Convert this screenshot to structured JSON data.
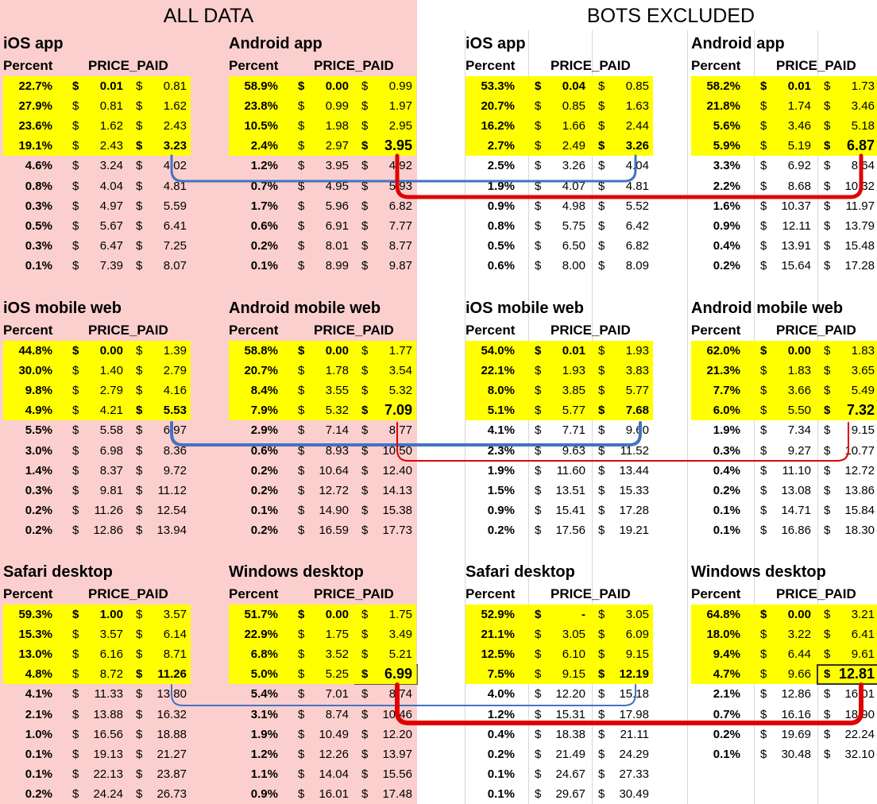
{
  "headers": {
    "left": "ALL DATA",
    "right": "BOTS EXCLUDED"
  },
  "column_labels": {
    "percent": "Percent",
    "price": "PRICE_PAID",
    "currency": "$"
  },
  "colors": {
    "all_data_bg": "#fbcfce",
    "top_rows_highlight": "#ffff00",
    "selected_cell": "#c6c000",
    "arrow_all": "#4472c4",
    "arrow_excluded": "#e00000"
  },
  "blocks": [
    {
      "title": "iOS app",
      "rows": [
        [
          "22.7%",
          "0.01",
          "0.81"
        ],
        [
          "27.9%",
          "0.81",
          "1.62"
        ],
        [
          "23.6%",
          "1.62",
          "2.43"
        ],
        [
          "19.1%",
          "2.43",
          "3.23"
        ],
        [
          "4.6%",
          "3.24",
          "4.02"
        ],
        [
          "0.8%",
          "4.04",
          "4.81"
        ],
        [
          "0.3%",
          "4.97",
          "5.59"
        ],
        [
          "0.5%",
          "5.67",
          "6.41"
        ],
        [
          "0.3%",
          "6.47",
          "7.25"
        ],
        [
          "0.1%",
          "7.39",
          "8.07"
        ]
      ]
    },
    {
      "title": "Android app",
      "rows": [
        [
          "58.9%",
          "0.00",
          "0.99"
        ],
        [
          "23.8%",
          "0.99",
          "1.97"
        ],
        [
          "10.5%",
          "1.98",
          "2.95"
        ],
        [
          "2.4%",
          "2.97",
          "3.95"
        ],
        [
          "1.2%",
          "3.95",
          "4.92"
        ],
        [
          "0.7%",
          "4.95",
          "5.93"
        ],
        [
          "1.7%",
          "5.96",
          "6.82"
        ],
        [
          "0.6%",
          "6.91",
          "7.77"
        ],
        [
          "0.2%",
          "8.01",
          "8.77"
        ],
        [
          "0.1%",
          "8.99",
          "9.87"
        ]
      ]
    },
    {
      "title": "iOS app",
      "rows": [
        [
          "53.3%",
          "0.04",
          "0.85"
        ],
        [
          "20.7%",
          "0.85",
          "1.63"
        ],
        [
          "16.2%",
          "1.66",
          "2.44"
        ],
        [
          "2.7%",
          "2.49",
          "3.26"
        ],
        [
          "2.5%",
          "3.26",
          "4.04"
        ],
        [
          "1.9%",
          "4.07",
          "4.81"
        ],
        [
          "0.9%",
          "4.98",
          "5.52"
        ],
        [
          "0.8%",
          "5.75",
          "6.42"
        ],
        [
          "0.5%",
          "6.50",
          "6.82"
        ],
        [
          "0.6%",
          "8.00",
          "8.09"
        ]
      ]
    },
    {
      "title": "Android app",
      "rows": [
        [
          "58.2%",
          "0.01",
          "1.73"
        ],
        [
          "21.8%",
          "1.74",
          "3.46"
        ],
        [
          "5.6%",
          "3.46",
          "5.18"
        ],
        [
          "5.9%",
          "5.19",
          "6.87"
        ],
        [
          "3.3%",
          "6.92",
          "8.64"
        ],
        [
          "2.2%",
          "8.68",
          "10.32"
        ],
        [
          "1.6%",
          "10.37",
          "11.97"
        ],
        [
          "0.9%",
          "12.11",
          "13.79"
        ],
        [
          "0.4%",
          "13.91",
          "15.48"
        ],
        [
          "0.2%",
          "15.64",
          "17.28"
        ]
      ]
    },
    {
      "title": "iOS mobile web",
      "rows": [
        [
          "44.8%",
          "0.00",
          "1.39"
        ],
        [
          "30.0%",
          "1.40",
          "2.79"
        ],
        [
          "9.8%",
          "2.79",
          "4.16"
        ],
        [
          "4.9%",
          "4.21",
          "5.53"
        ],
        [
          "5.5%",
          "5.58",
          "6.97"
        ],
        [
          "3.0%",
          "6.98",
          "8.36"
        ],
        [
          "1.4%",
          "8.37",
          "9.72"
        ],
        [
          "0.3%",
          "9.81",
          "11.12"
        ],
        [
          "0.2%",
          "11.26",
          "12.54"
        ],
        [
          "0.2%",
          "12.86",
          "13.94"
        ]
      ]
    },
    {
      "title": "Android mobile web",
      "rows": [
        [
          "58.8%",
          "0.00",
          "1.77"
        ],
        [
          "20.7%",
          "1.78",
          "3.54"
        ],
        [
          "8.4%",
          "3.55",
          "5.32"
        ],
        [
          "7.9%",
          "5.32",
          "7.09"
        ],
        [
          "2.9%",
          "7.14",
          "8.77"
        ],
        [
          "0.6%",
          "8.93",
          "10.50"
        ],
        [
          "0.2%",
          "10.64",
          "12.40"
        ],
        [
          "0.2%",
          "12.72",
          "14.13"
        ],
        [
          "0.1%",
          "14.90",
          "15.38"
        ],
        [
          "0.2%",
          "16.59",
          "17.73"
        ]
      ]
    },
    {
      "title": "iOS mobile web",
      "rows": [
        [
          "54.0%",
          "0.01",
          "1.93"
        ],
        [
          "22.1%",
          "1.93",
          "3.83"
        ],
        [
          "8.0%",
          "3.85",
          "5.77"
        ],
        [
          "5.1%",
          "5.77",
          "7.68"
        ],
        [
          "4.1%",
          "7.71",
          "9.60"
        ],
        [
          "2.3%",
          "9.63",
          "11.52"
        ],
        [
          "1.9%",
          "11.60",
          "13.44"
        ],
        [
          "1.5%",
          "13.51",
          "15.33"
        ],
        [
          "0.9%",
          "15.41",
          "17.28"
        ],
        [
          "0.2%",
          "17.56",
          "19.21"
        ]
      ]
    },
    {
      "title": "Android mobile web",
      "rows": [
        [
          "62.0%",
          "0.00",
          "1.83"
        ],
        [
          "21.3%",
          "1.83",
          "3.65"
        ],
        [
          "7.7%",
          "3.66",
          "5.49"
        ],
        [
          "6.0%",
          "5.50",
          "7.32"
        ],
        [
          "1.9%",
          "7.34",
          "9.15"
        ],
        [
          "0.3%",
          "9.27",
          "10.77"
        ],
        [
          "0.4%",
          "11.10",
          "12.72"
        ],
        [
          "0.2%",
          "13.08",
          "13.86"
        ],
        [
          "0.1%",
          "14.71",
          "15.84"
        ],
        [
          "0.1%",
          "16.86",
          "18.30"
        ]
      ]
    },
    {
      "title": "Safari desktop",
      "rows": [
        [
          "59.3%",
          "1.00",
          "3.57"
        ],
        [
          "15.3%",
          "3.57",
          "6.14"
        ],
        [
          "13.0%",
          "6.16",
          "8.71"
        ],
        [
          "4.8%",
          "8.72",
          "11.26"
        ],
        [
          "4.1%",
          "11.33",
          "13.80"
        ],
        [
          "2.1%",
          "13.88",
          "16.32"
        ],
        [
          "1.0%",
          "16.56",
          "18.88"
        ],
        [
          "0.1%",
          "19.13",
          "21.27"
        ],
        [
          "0.1%",
          "22.13",
          "23.87"
        ],
        [
          "0.2%",
          "24.24",
          "26.73"
        ]
      ]
    },
    {
      "title": "Windows desktop",
      "rows": [
        [
          "51.7%",
          "0.00",
          "1.75"
        ],
        [
          "22.9%",
          "1.75",
          "3.49"
        ],
        [
          "6.8%",
          "3.52",
          "5.21"
        ],
        [
          "5.0%",
          "5.25",
          "6.99"
        ],
        [
          "5.4%",
          "7.01",
          "8.74"
        ],
        [
          "3.1%",
          "8.74",
          "10.46"
        ],
        [
          "1.9%",
          "10.49",
          "12.20"
        ],
        [
          "1.2%",
          "12.26",
          "13.97"
        ],
        [
          "1.1%",
          "14.04",
          "15.56"
        ],
        [
          "0.9%",
          "16.01",
          "17.48"
        ]
      ]
    },
    {
      "title": "Safari desktop",
      "rows": [
        [
          "52.9%",
          "-",
          "3.05"
        ],
        [
          "21.1%",
          "3.05",
          "6.09"
        ],
        [
          "12.5%",
          "6.10",
          "9.15"
        ],
        [
          "7.5%",
          "9.15",
          "12.19"
        ],
        [
          "4.0%",
          "12.20",
          "15.18"
        ],
        [
          "1.2%",
          "15.31",
          "17.98"
        ],
        [
          "0.4%",
          "18.38",
          "21.11"
        ],
        [
          "0.2%",
          "21.49",
          "24.29"
        ],
        [
          "0.1%",
          "24.67",
          "27.33"
        ],
        [
          "0.1%",
          "29.67",
          "30.49"
        ]
      ]
    },
    {
      "title": "Windows desktop",
      "rows": [
        [
          "64.8%",
          "0.00",
          "3.21"
        ],
        [
          "18.0%",
          "3.22",
          "6.41"
        ],
        [
          "9.4%",
          "6.44",
          "9.61"
        ],
        [
          "4.7%",
          "9.66",
          "12.81"
        ],
        [
          "2.1%",
          "12.86",
          "16.01"
        ],
        [
          "0.7%",
          "16.16",
          "18.90"
        ],
        [
          "0.2%",
          "19.69",
          "22.24"
        ],
        [
          "0.1%",
          "30.48",
          "32.10"
        ]
      ]
    }
  ]
}
